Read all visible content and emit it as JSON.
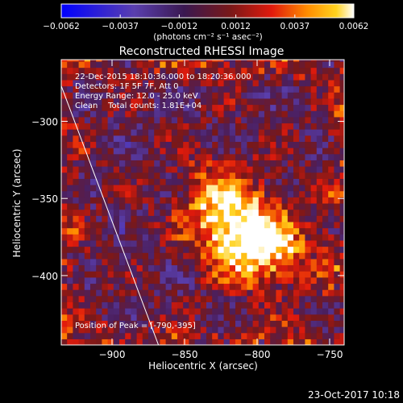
{
  "chart_data": {
    "type": "heatmap",
    "title": "Reconstructed RHESSI Image",
    "xlabel": "Heliocentric X (arcsec)",
    "ylabel": "Heliocentric Y (arcsec)",
    "xlim": [
      -935,
      -740
    ],
    "ylim": [
      -445,
      -260
    ],
    "xticks": [
      -900,
      -850,
      -800,
      -750
    ],
    "yticks": [
      -300,
      -350,
      -400
    ],
    "colorbar": {
      "range": [
        -0.0062,
        0.0062
      ],
      "ticks": [
        -0.0062,
        -0.0037,
        -0.0012,
        0.0012,
        0.0037,
        0.0062
      ],
      "tick_labels": [
        "-0.0062",
        "-0.0037",
        "-0.0012",
        "0.0012",
        "0.0037",
        "0.0062"
      ],
      "unit_label": "(photons cm⁻² s⁻¹ asec⁻²)"
    },
    "annotations": [
      "22-Dec-2015 18:10:36.000 to 18:20:36.000",
      "Detectors: 1F 5F 7F, Att 0",
      "Energy Range: 12.0 - 25.0 keV",
      "Clean    Total counts: 1.81E+04"
    ],
    "peak_label": "Position of Peak = [-790,-395]",
    "peak": [
      -790,
      -395
    ],
    "sources": [
      {
        "x": -811,
        "y": -375,
        "peak": 0.0062
      },
      {
        "x": -828,
        "y": -350,
        "peak": 0.0045
      },
      {
        "x": -786,
        "y": -383,
        "peak": 0.004
      }
    ],
    "limb_line": [
      [
        -935,
        -277
      ],
      [
        -868,
        -445
      ]
    ]
  },
  "footer": {
    "date": "23-Oct-2017 10:18"
  },
  "colors": {
    "background": "#000000",
    "colormap": [
      "#0000ff",
      "#5a3fae",
      "#4b1f5e",
      "#7a1818",
      "#e11a0c",
      "#ff8c00",
      "#ffd21e",
      "#ffffff"
    ]
  }
}
